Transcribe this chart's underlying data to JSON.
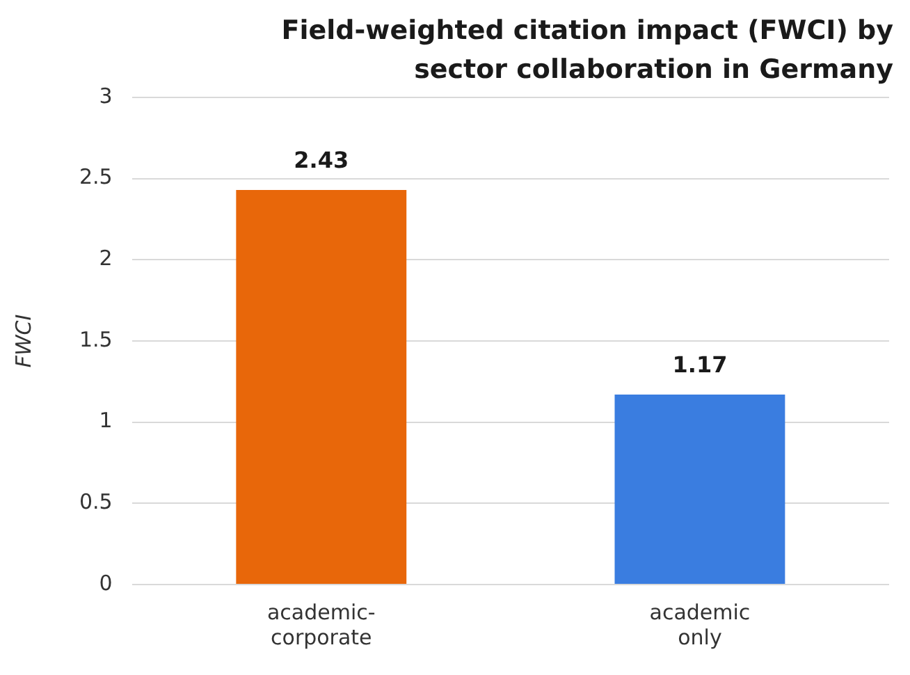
{
  "chart_data": {
    "type": "bar",
    "title": "Field-weighted citation impact (FWCI) by sector collaboration in Germany",
    "ylabel": "FWCI",
    "categories": [
      "academic-corporate",
      "academic only"
    ],
    "values": [
      2.43,
      1.17
    ],
    "colors": [
      "#e8670a",
      "#3a7de0"
    ],
    "ylim": [
      0,
      3
    ],
    "yticks": [
      0,
      0.5,
      1,
      1.5,
      2,
      2.5,
      3
    ],
    "grid": "y",
    "data_labels": true,
    "legend": false
  }
}
